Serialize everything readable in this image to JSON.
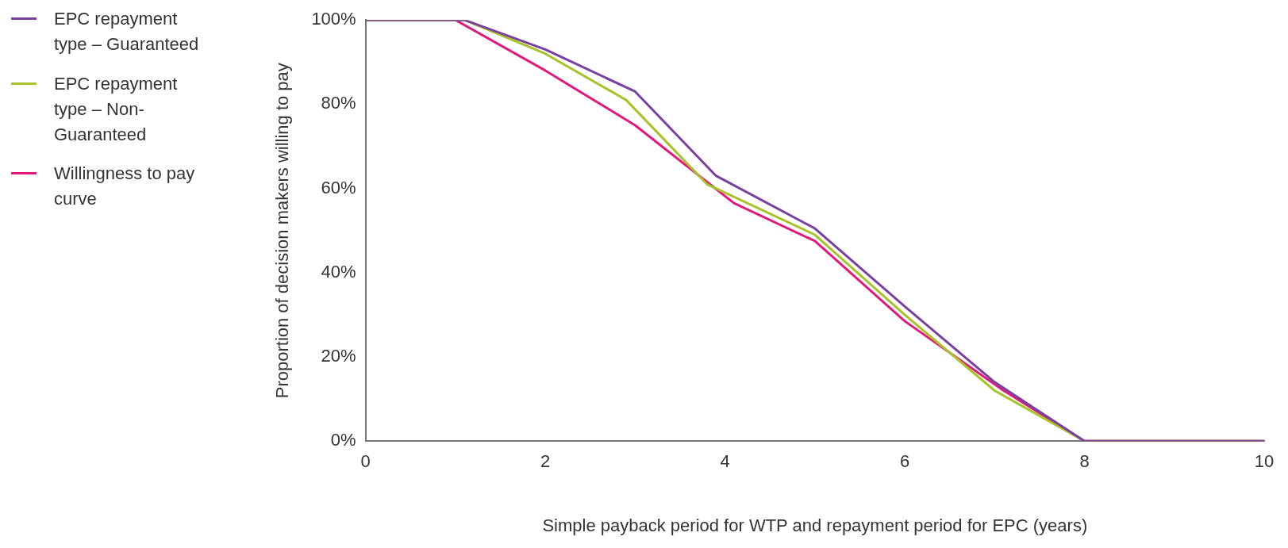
{
  "chart_data": {
    "type": "line",
    "xlabel": "Simple payback period for WTP and repayment period for EPC (years)",
    "ylabel": "Proportion of decision makers willing to pay",
    "xlim": [
      0,
      10
    ],
    "xticks": [
      0,
      2,
      4,
      6,
      8,
      10
    ],
    "ylim": [
      0,
      100
    ],
    "yticks": [
      {
        "value": 0,
        "label": "0%"
      },
      {
        "value": 20,
        "label": "20%"
      },
      {
        "value": 40,
        "label": "40%"
      },
      {
        "value": 60,
        "label": "60%"
      },
      {
        "value": 80,
        "label": "80%"
      },
      {
        "value": 100,
        "label": "100%"
      }
    ],
    "grid": false,
    "legend": "left",
    "marker": "none",
    "line_style": "solid",
    "series": [
      {
        "name": "EPC repayment type – Guaranteed",
        "color": "#7b3fa0",
        "x": [
          0,
          1.1,
          2,
          3,
          3.9,
          5,
          6,
          7,
          8,
          10
        ],
        "values": [
          100,
          100,
          93,
          83,
          63,
          50.5,
          32,
          14,
          0,
          0
        ]
      },
      {
        "name": "EPC repayment type – Non-Guaranteed",
        "color": "#a8c32a",
        "x": [
          0,
          1.1,
          2,
          2.9,
          3.8,
          5,
          6,
          7,
          8,
          10
        ],
        "values": [
          100,
          100,
          92,
          81,
          61,
          49,
          30,
          12,
          0,
          0
        ]
      },
      {
        "name": "Willingness to pay curve",
        "color": "#e0197d",
        "x": [
          0,
          1,
          2,
          3,
          4.1,
          5,
          6,
          7.1,
          8,
          10
        ],
        "values": [
          100,
          100,
          88,
          75,
          56.5,
          47.5,
          28.5,
          12,
          0,
          0
        ]
      }
    ]
  }
}
